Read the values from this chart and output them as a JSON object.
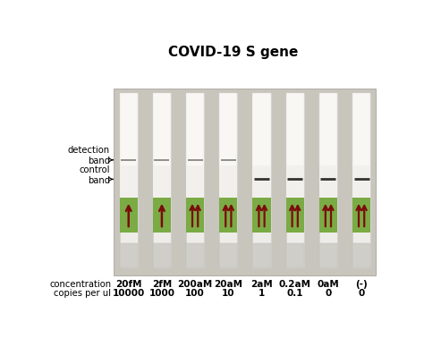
{
  "title": "COVID-19 S gene",
  "title_fontsize": 11,
  "title_fontweight": "bold",
  "concentrations": [
    "20fM",
    "2fM",
    "200aM",
    "20aM",
    "2aM",
    "0.2aM",
    "0aM",
    "(-)"
  ],
  "copies": [
    "10000",
    "1000",
    "100",
    "10",
    "1",
    "0.1",
    "0",
    "0"
  ],
  "n_strips": 8,
  "bg_color": "#ffffff",
  "photo_bg": "#c8c5bc",
  "strip_body_color": "#eeece8",
  "strip_top_color": "#f8f7f4",
  "strip_mid_color": "#f0eee9",
  "green_color": "#7aab44",
  "red_arrow_color": "#7a0c0c",
  "det_band_color": "#888880",
  "ctrl_band_color": "#333330",
  "det_band_strips": [
    0,
    1,
    2,
    3
  ],
  "ctrl_band_strips": [
    4,
    5,
    6,
    7
  ],
  "single_arrow_strips": [
    0,
    1
  ],
  "double_arrow_strips": [
    2,
    3,
    4,
    5,
    6,
    7
  ]
}
